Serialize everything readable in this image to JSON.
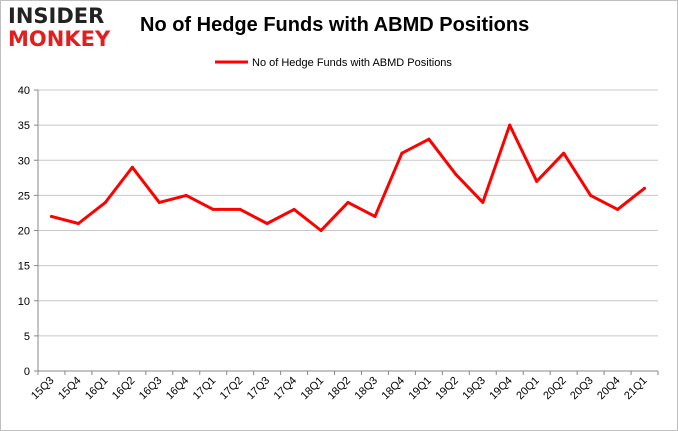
{
  "logo": {
    "line1": "INSIDER",
    "line2": "MONKEY"
  },
  "chart_data": {
    "type": "line",
    "title": "No of Hedge Funds with ABMD Positions",
    "xlabel": "",
    "ylabel": "",
    "categories": [
      "15Q3",
      "15Q4",
      "16Q1",
      "16Q2",
      "16Q3",
      "16Q4",
      "17Q1",
      "17Q2",
      "17Q3",
      "17Q4",
      "18Q1",
      "18Q2",
      "18Q3",
      "18Q4",
      "19Q1",
      "19Q2",
      "19Q3",
      "19Q4",
      "20Q1",
      "20Q2",
      "20Q3",
      "20Q4",
      "21Q1"
    ],
    "series": [
      {
        "name": "No of Hedge Funds with ABMD Positions",
        "color": "#ff0000",
        "values": [
          22,
          21,
          24,
          29,
          24,
          25,
          23,
          23,
          21,
          23,
          20,
          24,
          22,
          31,
          33,
          28,
          24,
          35,
          27,
          31,
          25,
          23,
          26
        ]
      }
    ],
    "ylim": [
      0,
      40
    ],
    "yticks": [
      0,
      5,
      10,
      15,
      20,
      25,
      30,
      35,
      40
    ],
    "grid": "horizontal",
    "legend_position": "top-center"
  }
}
